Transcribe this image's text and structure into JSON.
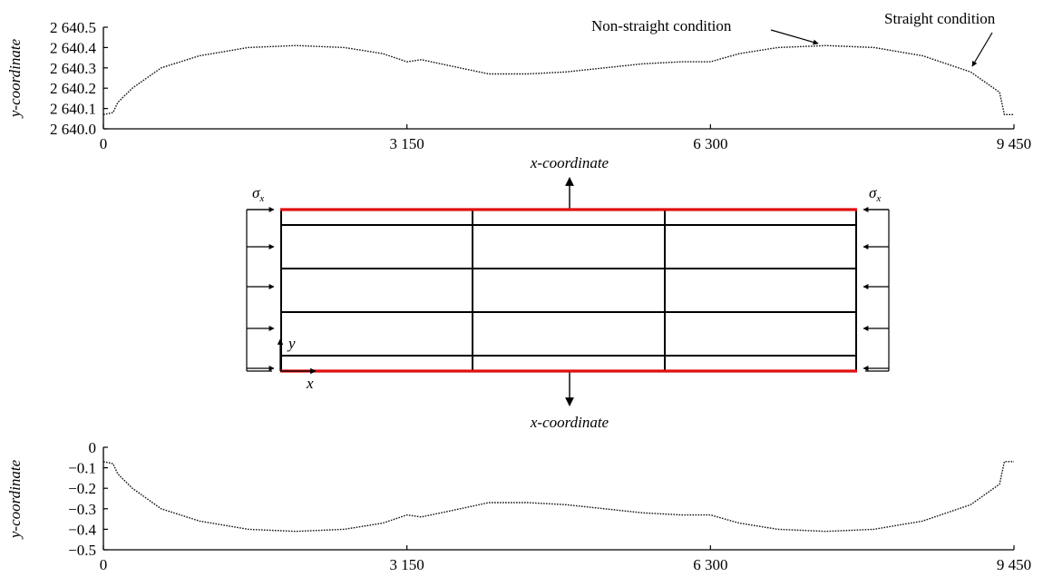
{
  "top_plot": {
    "ylabel": "y-coordinate",
    "y_ticks": [
      "2 640.5",
      "2 640.4",
      "2 640.3",
      "2 640.2",
      "2 640.1",
      "2 640.0"
    ],
    "x_ticks": [
      "0",
      "3 150",
      "6 300",
      "9 450"
    ],
    "annotation_nonstraight": "Non-straight condition",
    "annotation_straight": "Straight condition"
  },
  "diagram": {
    "xlabel_top": "x-coordinate",
    "xlabel_bottom": "x-coordinate",
    "sigma_left": "σ",
    "sigma_left_sub": "x",
    "sigma_right": "σ",
    "sigma_right_sub": "x",
    "axis_y": "y",
    "axis_x": "x"
  },
  "bottom_plot": {
    "ylabel": "y-coordinate",
    "y_ticks": [
      "0",
      "−0.1",
      "−0.2",
      "−0.3",
      "−0.4",
      "−0.5"
    ],
    "x_ticks": [
      "0",
      "3 150",
      "6 300",
      "9 450"
    ]
  },
  "chart_data": [
    {
      "type": "line",
      "title": "",
      "xlabel": "x-coordinate",
      "ylabel": "y-coordinate",
      "xlim": [
        0,
        9450
      ],
      "ylim": [
        2640.0,
        2640.5
      ],
      "x": [
        0,
        100,
        150,
        300,
        600,
        1000,
        1500,
        2000,
        2500,
        2900,
        3150,
        3300,
        3600,
        4000,
        4400,
        4800,
        5200,
        5600,
        6000,
        6300,
        6600,
        7000,
        7500,
        8000,
        8500,
        9000,
        9300,
        9350,
        9450
      ],
      "series": [
        {
          "values": [
            2640.07,
            2640.08,
            2640.13,
            2640.2,
            2640.3,
            2640.36,
            2640.4,
            2640.41,
            2640.4,
            2640.37,
            2640.33,
            2640.34,
            2640.31,
            2640.27,
            2640.27,
            2640.28,
            2640.3,
            2640.32,
            2640.33,
            2640.33,
            2640.37,
            2640.4,
            2640.41,
            2640.4,
            2640.36,
            2640.28,
            2640.18,
            2640.07,
            2640.07
          ]
        }
      ]
    },
    {
      "type": "line",
      "title": "",
      "xlabel": "",
      "ylabel": "y-coordinate",
      "xlim": [
        0,
        9450
      ],
      "ylim": [
        -0.5,
        0
      ],
      "x": [
        0,
        100,
        150,
        300,
        600,
        1000,
        1500,
        2000,
        2500,
        2900,
        3150,
        3300,
        3600,
        4000,
        4400,
        4800,
        5200,
        5600,
        6000,
        6300,
        6600,
        7000,
        7500,
        8000,
        8500,
        9000,
        9300,
        9350,
        9450
      ],
      "series": [
        {
          "values": [
            -0.07,
            -0.08,
            -0.13,
            -0.2,
            -0.3,
            -0.36,
            -0.4,
            -0.41,
            -0.4,
            -0.37,
            -0.33,
            -0.34,
            -0.31,
            -0.27,
            -0.27,
            -0.28,
            -0.3,
            -0.32,
            -0.33,
            -0.33,
            -0.37,
            -0.4,
            -0.41,
            -0.4,
            -0.36,
            -0.28,
            -0.18,
            -0.07,
            -0.07
          ]
        }
      ]
    }
  ]
}
